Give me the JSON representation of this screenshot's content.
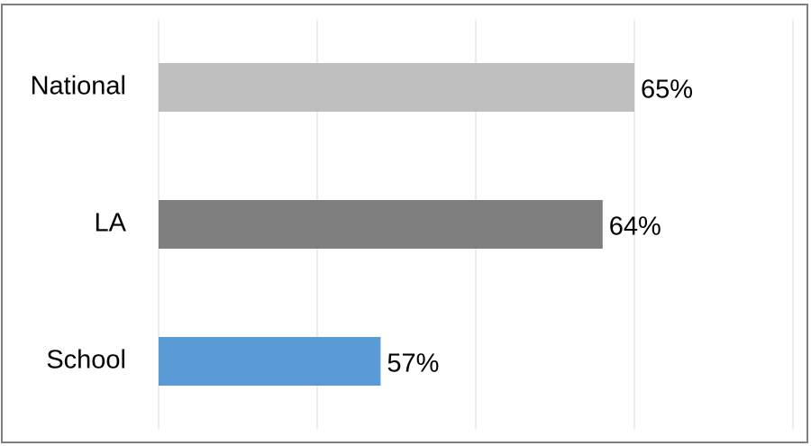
{
  "chart_data": {
    "type": "bar",
    "orientation": "horizontal",
    "categories": [
      "National",
      "LA",
      "School"
    ],
    "values": [
      65,
      64,
      57
    ],
    "value_labels": [
      "65%",
      "64%",
      "57%"
    ],
    "colors": [
      "#bfbfbf",
      "#7f7f7f",
      "#5b9bd5"
    ],
    "xlim": [
      50,
      70
    ],
    "xticks": [
      50,
      55,
      60,
      65,
      70
    ],
    "tick_labels": false,
    "grid": true
  }
}
